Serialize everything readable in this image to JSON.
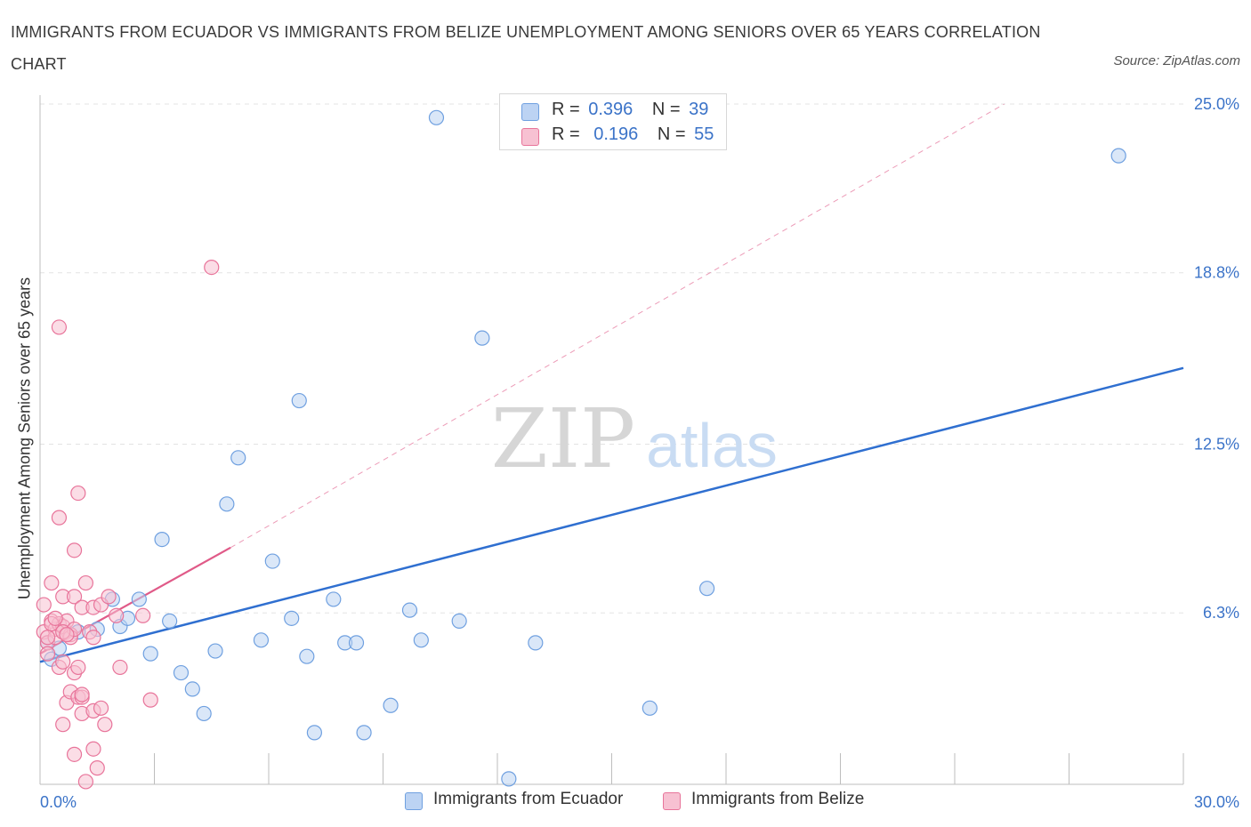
{
  "title": "IMMIGRANTS FROM ECUADOR VS IMMIGRANTS FROM BELIZE UNEMPLOYMENT AMONG SENIORS OVER 65 YEARS CORRELATION CHART",
  "source": "Source: ZipAtlas.com",
  "watermark": {
    "zip": "ZIP",
    "atlas": "atlas"
  },
  "legend": {
    "r_label": "R =",
    "n_label": "N =",
    "series": [
      {
        "name": "Immigrants from Ecuador",
        "r": "0.396",
        "n": "39",
        "color": "#6fa0e0",
        "fill": "#bcd3f3"
      },
      {
        "name": "Immigrants from Belize",
        "r": "0.196",
        "n": "55",
        "color": "#e8749a",
        "fill": "#f7c1d2"
      }
    ]
  },
  "chart_data": {
    "type": "scatter",
    "title": "IMMIGRANTS FROM ECUADOR VS IMMIGRANTS FROM BELIZE UNEMPLOYMENT AMONG SENIORS OVER 65 YEARS CORRELATION CHART",
    "xlabel": "",
    "ylabel": "Unemployment Among Seniors over 65 years",
    "xlim": [
      0,
      30
    ],
    "ylim": [
      0,
      25
    ],
    "x_tick_labels": [
      "0.0%",
      "30.0%"
    ],
    "y_ticks": [
      6.3,
      12.5,
      18.8,
      25.0
    ],
    "y_tick_labels": [
      "6.3%",
      "12.5%",
      "18.8%",
      "25.0%"
    ],
    "series": [
      {
        "name": "Immigrants from Ecuador",
        "color": "#6fa0e0",
        "line_color": "#2f6fd0",
        "trend": {
          "x": [
            0,
            30
          ],
          "y": [
            4.5,
            15.3
          ],
          "style": "solid"
        },
        "points": [
          [
            0.2,
            5.2
          ],
          [
            0.3,
            4.6
          ],
          [
            0.5,
            5.0
          ],
          [
            1.0,
            5.6
          ],
          [
            1.5,
            5.7
          ],
          [
            1.9,
            6.8
          ],
          [
            2.1,
            5.8
          ],
          [
            2.3,
            6.1
          ],
          [
            2.6,
            6.8
          ],
          [
            2.9,
            4.8
          ],
          [
            3.2,
            9.0
          ],
          [
            3.4,
            6.0
          ],
          [
            3.7,
            4.1
          ],
          [
            4.0,
            3.5
          ],
          [
            4.3,
            2.6
          ],
          [
            4.6,
            4.9
          ],
          [
            4.9,
            10.3
          ],
          [
            5.2,
            12.0
          ],
          [
            5.8,
            5.3
          ],
          [
            6.1,
            8.2
          ],
          [
            6.6,
            6.1
          ],
          [
            6.8,
            14.1
          ],
          [
            7.0,
            4.7
          ],
          [
            7.2,
            1.9
          ],
          [
            7.7,
            6.8
          ],
          [
            8.0,
            5.2
          ],
          [
            8.3,
            5.2
          ],
          [
            8.5,
            1.9
          ],
          [
            9.2,
            2.9
          ],
          [
            9.7,
            6.4
          ],
          [
            10.0,
            5.3
          ],
          [
            10.4,
            24.5
          ],
          [
            11.0,
            6.0
          ],
          [
            11.6,
            16.4
          ],
          [
            12.3,
            0.2
          ],
          [
            13.0,
            5.2
          ],
          [
            16.0,
            2.8
          ],
          [
            17.5,
            7.2
          ],
          [
            28.3,
            23.1
          ]
        ]
      },
      {
        "name": "Immigrants from Belize",
        "color": "#e8749a",
        "line_color": "#e05a88",
        "trend": {
          "x": [
            0,
            5
          ],
          "y": [
            4.8,
            8.7
          ],
          "style": "solid"
        },
        "trend_extended": {
          "x": [
            5,
            25.3
          ],
          "y": [
            8.7,
            25.0
          ],
          "style": "dashed"
        },
        "points": [
          [
            0.1,
            5.6
          ],
          [
            0.1,
            6.6
          ],
          [
            0.2,
            5.2
          ],
          [
            0.2,
            4.8
          ],
          [
            0.3,
            6.0
          ],
          [
            0.3,
            7.4
          ],
          [
            0.4,
            5.7
          ],
          [
            0.4,
            5.4
          ],
          [
            0.5,
            5.9
          ],
          [
            0.5,
            4.3
          ],
          [
            0.5,
            9.8
          ],
          [
            0.6,
            6.9
          ],
          [
            0.6,
            5.8
          ],
          [
            0.6,
            4.5
          ],
          [
            0.6,
            2.2
          ],
          [
            0.7,
            3.0
          ],
          [
            0.7,
            6.0
          ],
          [
            0.8,
            5.5
          ],
          [
            0.8,
            3.4
          ],
          [
            0.8,
            5.4
          ],
          [
            0.9,
            5.7
          ],
          [
            0.9,
            8.6
          ],
          [
            0.9,
            6.9
          ],
          [
            0.9,
            4.1
          ],
          [
            0.9,
            1.1
          ],
          [
            1.0,
            10.7
          ],
          [
            1.0,
            4.3
          ],
          [
            1.0,
            3.2
          ],
          [
            1.1,
            2.6
          ],
          [
            1.1,
            6.5
          ],
          [
            1.1,
            3.2
          ],
          [
            1.1,
            3.3
          ],
          [
            1.2,
            0.1
          ],
          [
            1.2,
            7.4
          ],
          [
            1.3,
            5.6
          ],
          [
            1.4,
            2.7
          ],
          [
            1.4,
            5.4
          ],
          [
            1.4,
            6.5
          ],
          [
            1.4,
            1.3
          ],
          [
            1.5,
            0.6
          ],
          [
            1.6,
            2.8
          ],
          [
            1.6,
            6.6
          ],
          [
            1.7,
            2.2
          ],
          [
            1.8,
            6.9
          ],
          [
            2.0,
            6.2
          ],
          [
            2.1,
            4.3
          ],
          [
            2.7,
            6.2
          ],
          [
            2.9,
            3.1
          ],
          [
            4.5,
            19.0
          ],
          [
            0.5,
            16.8
          ],
          [
            0.3,
            5.9
          ],
          [
            0.6,
            5.6
          ],
          [
            0.4,
            6.1
          ],
          [
            0.7,
            5.5
          ],
          [
            0.2,
            5.4
          ]
        ]
      }
    ]
  }
}
